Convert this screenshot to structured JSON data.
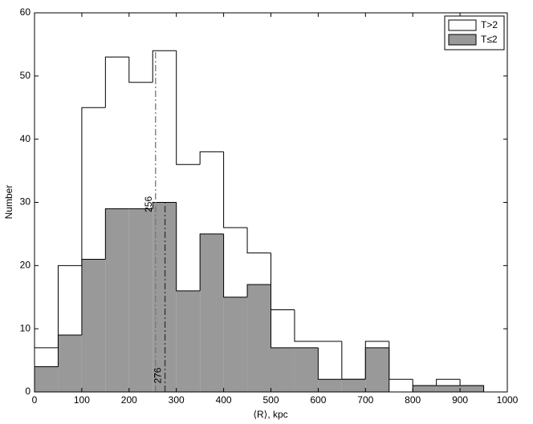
{
  "chart_data": {
    "type": "histogram",
    "xlabel": "⟨R⟩, kpc",
    "ylabel": "Number",
    "bins": [
      0,
      50,
      100,
      150,
      200,
      250,
      300,
      350,
      400,
      450,
      500,
      550,
      600,
      650,
      700,
      750,
      800,
      850,
      900,
      950
    ],
    "series": [
      {
        "name": "T>2",
        "color": "#ffffff",
        "values": [
          7,
          20,
          45,
          53,
          49,
          54,
          36,
          38,
          26,
          22,
          13,
          8,
          8,
          2,
          8,
          2,
          1,
          2,
          1
        ]
      },
      {
        "name": "T≤2",
        "color": "#999999",
        "values": [
          4,
          9,
          21,
          29,
          29,
          30,
          16,
          25,
          15,
          17,
          7,
          7,
          2,
          2,
          7,
          0,
          1,
          1,
          1
        ]
      }
    ],
    "medians": [
      256,
      276
    ],
    "xlim": [
      0,
      1000
    ],
    "xticks": [
      0,
      100,
      200,
      300,
      400,
      500,
      600,
      700,
      800,
      900,
      1000
    ],
    "ylim": [
      0,
      60
    ],
    "yticks": [
      0,
      10,
      20,
      30,
      40,
      50,
      60
    ],
    "legend": "upper right"
  }
}
